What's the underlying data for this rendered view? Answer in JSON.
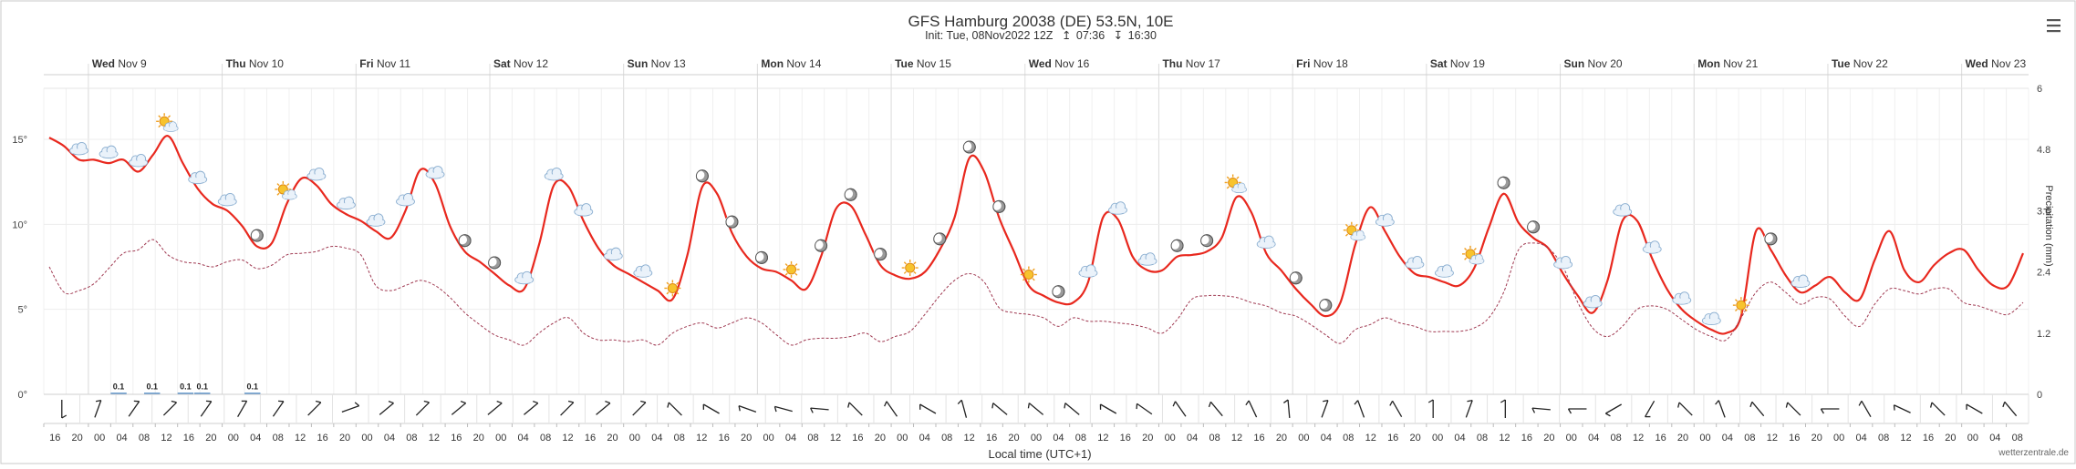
{
  "header": {
    "title": "GFS Hamburg 20038 (DE) 53.5N, 10E",
    "init": "Init: Tue, 08Nov2022 12Z",
    "sunrise": "07:36",
    "sunset": "16:30"
  },
  "menu_icon": "hamburger-menu-icon",
  "credit": "wetterzentrale.de",
  "chart_data": {
    "type": "line",
    "xlabel": "Local time (UTC+1)",
    "ylabel_right": "Precipitation (mm)",
    "ylim_left": [
      0,
      18
    ],
    "ylim_right": [
      0,
      6
    ],
    "y_ticks_left": [
      "0°",
      "5°",
      "10°",
      "15°"
    ],
    "y_ticks_right": [
      "0",
      "1.2",
      "2.4",
      "3.6",
      "4.8",
      "6"
    ],
    "days": [
      {
        "wd": "Wed",
        "rest": " Nov 9"
      },
      {
        "wd": "Thu",
        "rest": " Nov 10"
      },
      {
        "wd": "Fri",
        "rest": " Nov 11"
      },
      {
        "wd": "Sat",
        "rest": " Nov 12"
      },
      {
        "wd": "Sun",
        "rest": " Nov 13"
      },
      {
        "wd": "Mon",
        "rest": " Nov 14"
      },
      {
        "wd": "Tue",
        "rest": " Nov 15"
      },
      {
        "wd": "Wed",
        "rest": " Nov 16"
      },
      {
        "wd": "Thu",
        "rest": " Nov 17"
      },
      {
        "wd": "Fri",
        "rest": " Nov 18"
      },
      {
        "wd": "Sat",
        "rest": " Nov 19"
      },
      {
        "wd": "Sun",
        "rest": " Nov 20"
      },
      {
        "wd": "Mon",
        "rest": " Nov 21"
      },
      {
        "wd": "Tue",
        "rest": " Nov 22"
      },
      {
        "wd": "Wed",
        "rest": " Nov 23"
      }
    ],
    "hour_labels": [
      "16",
      "20",
      "00",
      "04",
      "08",
      "12",
      "16",
      "20",
      "00",
      "04",
      "08",
      "12",
      "16",
      "20",
      "00",
      "04",
      "08",
      "12",
      "16",
      "20",
      "00",
      "04",
      "08",
      "12",
      "16",
      "20",
      "00",
      "04",
      "08",
      "12",
      "16",
      "20",
      "00",
      "04",
      "08",
      "12",
      "16",
      "20",
      "00",
      "04",
      "08",
      "12",
      "16",
      "20",
      "00",
      "04",
      "08",
      "12",
      "16",
      "20",
      "00",
      "04",
      "08",
      "12",
      "16",
      "20",
      "00",
      "04",
      "08",
      "12",
      "16",
      "20",
      "00",
      "04",
      "08",
      "12",
      "16",
      "20",
      "00",
      "04",
      "08",
      "12",
      "16",
      "20",
      "00",
      "04",
      "08",
      "12",
      "16",
      "20",
      "00",
      "04",
      "08",
      "12",
      "16",
      "20",
      "00",
      "04",
      "08"
    ],
    "series": [
      {
        "name": "Temperature (°C)",
        "color": "#e8281e",
        "values": [
          15.1,
          14.6,
          13.8,
          13.8,
          13.6,
          13.8,
          13.1,
          14.1,
          15.2,
          13.6,
          12.1,
          11.2,
          10.8,
          9.9,
          8.7,
          8.9,
          11.2,
          12.7,
          12.3,
          11.2,
          10.6,
          10.2,
          9.6,
          9.2,
          10.8,
          13.2,
          12.4,
          9.9,
          8.4,
          7.8,
          7.1,
          6.4,
          6.2,
          8.8,
          12.3,
          12.2,
          10.2,
          8.6,
          7.6,
          7.1,
          6.6,
          6.1,
          5.6,
          8.2,
          12.2,
          11.8,
          9.5,
          8.1,
          7.4,
          7.2,
          6.7,
          6.2,
          8.1,
          10.9,
          11.1,
          9.4,
          7.6,
          7.0,
          6.8,
          7.2,
          8.5,
          10.4,
          13.9,
          13.1,
          10.4,
          8.4,
          6.4,
          5.8,
          5.4,
          5.4,
          6.6,
          10.4,
          10.3,
          8.1,
          7.3,
          7.3,
          8.1,
          8.2,
          8.4,
          9.2,
          11.6,
          10.7,
          8.3,
          7.3,
          6.2,
          5.3,
          4.6,
          5.4,
          8.8,
          11.0,
          9.6,
          8.1,
          7.1,
          6.9,
          6.6,
          6.4,
          7.4,
          9.8,
          11.8,
          10.1,
          9.2,
          8.6,
          7.1,
          5.8,
          4.8,
          6.7,
          10.2,
          10.2,
          8.0,
          6.2,
          5.0,
          4.3,
          3.8,
          3.6,
          4.6,
          9.6,
          8.5,
          7.0,
          6.0,
          6.4,
          6.9,
          6.0,
          5.6,
          7.9,
          9.6,
          7.3,
          6.6,
          7.6,
          8.3,
          8.5,
          7.3,
          6.4,
          6.4,
          8.3
        ]
      },
      {
        "name": "Dew point (°C)",
        "color": "#a03a52",
        "values": [
          7.5,
          6.0,
          6.1,
          6.5,
          7.4,
          8.3,
          8.5,
          9.1,
          8.2,
          7.8,
          7.7,
          7.5,
          7.8,
          7.9,
          7.4,
          7.6,
          8.2,
          8.3,
          8.4,
          8.7,
          8.6,
          8.2,
          6.4,
          6.1,
          6.4,
          6.7,
          6.4,
          5.7,
          4.8,
          4.1,
          3.5,
          3.2,
          2.9,
          3.6,
          4.2,
          4.5,
          3.6,
          3.2,
          3.2,
          3.1,
          3.2,
          2.9,
          3.6,
          4.0,
          4.2,
          3.9,
          4.2,
          4.5,
          4.2,
          3.5,
          2.9,
          3.2,
          3.3,
          3.3,
          3.4,
          3.6,
          3.1,
          3.4,
          3.7,
          4.7,
          5.8,
          6.7,
          7.1,
          6.6,
          5.1,
          4.8,
          4.7,
          4.5,
          4.0,
          4.5,
          4.3,
          4.3,
          4.2,
          4.1,
          3.9,
          3.6,
          4.4,
          5.6,
          5.8,
          5.8,
          5.7,
          5.4,
          5.2,
          4.8,
          4.6,
          4.1,
          3.5,
          3.0,
          3.8,
          4.1,
          4.5,
          4.2,
          4.0,
          3.7,
          3.7,
          3.7,
          3.9,
          4.5,
          6.0,
          8.5,
          8.9,
          8.6,
          7.5,
          5.4,
          3.9,
          3.4,
          4.0,
          5.0,
          5.2,
          5.0,
          4.4,
          3.8,
          3.4,
          3.2,
          4.5,
          6.0,
          6.6,
          6.0,
          5.3,
          5.7,
          5.6,
          4.6,
          4.0,
          5.3,
          6.2,
          6.1,
          5.9,
          6.2,
          6.2,
          5.4,
          5.2,
          4.9,
          4.7,
          5.4
        ]
      }
    ],
    "precip_bars": [
      {
        "hour_index": 4,
        "value": 0.1
      },
      {
        "hour_index": 6,
        "value": 0.1
      },
      {
        "hour_index": 8,
        "value": 0.1
      },
      {
        "hour_index": 9,
        "value": 0.1
      },
      {
        "hour_index": 12,
        "value": 0.1
      }
    ],
    "precip_step_hours": 3,
    "weather_icons": [
      {
        "hour_index": 2,
        "icon": "cloud"
      },
      {
        "hour_index": 4,
        "icon": "cloud"
      },
      {
        "hour_index": 6,
        "icon": "cloud"
      },
      {
        "hour_index": 8,
        "icon": "sun-cloud"
      },
      {
        "hour_index": 10,
        "icon": "cloud"
      },
      {
        "hour_index": 12,
        "icon": "cloud"
      },
      {
        "hour_index": 14,
        "icon": "moon"
      },
      {
        "hour_index": 16,
        "icon": "sun-cloud"
      },
      {
        "hour_index": 18,
        "icon": "cloud"
      },
      {
        "hour_index": 20,
        "icon": "cloud"
      },
      {
        "hour_index": 22,
        "icon": "cloud"
      },
      {
        "hour_index": 24,
        "icon": "cloud"
      },
      {
        "hour_index": 26,
        "icon": "cloud"
      },
      {
        "hour_index": 28,
        "icon": "moon"
      },
      {
        "hour_index": 30,
        "icon": "moon"
      },
      {
        "hour_index": 32,
        "icon": "cloud"
      },
      {
        "hour_index": 34,
        "icon": "cloud"
      },
      {
        "hour_index": 36,
        "icon": "cloud"
      },
      {
        "hour_index": 38,
        "icon": "cloud"
      },
      {
        "hour_index": 40,
        "icon": "cloud"
      },
      {
        "hour_index": 42,
        "icon": "sun"
      },
      {
        "hour_index": 44,
        "icon": "moon"
      },
      {
        "hour_index": 46,
        "icon": "moon"
      },
      {
        "hour_index": 48,
        "icon": "moon"
      },
      {
        "hour_index": 50,
        "icon": "sun"
      },
      {
        "hour_index": 52,
        "icon": "moon"
      },
      {
        "hour_index": 54,
        "icon": "moon"
      },
      {
        "hour_index": 56,
        "icon": "moon"
      },
      {
        "hour_index": 58,
        "icon": "sun"
      },
      {
        "hour_index": 60,
        "icon": "moon"
      },
      {
        "hour_index": 62,
        "icon": "moon"
      },
      {
        "hour_index": 64,
        "icon": "moon"
      },
      {
        "hour_index": 66,
        "icon": "sun"
      },
      {
        "hour_index": 68,
        "icon": "moon"
      },
      {
        "hour_index": 70,
        "icon": "cloud"
      },
      {
        "hour_index": 72,
        "icon": "cloud"
      },
      {
        "hour_index": 74,
        "icon": "cloud"
      },
      {
        "hour_index": 76,
        "icon": "moon"
      },
      {
        "hour_index": 78,
        "icon": "moon"
      },
      {
        "hour_index": 80,
        "icon": "sun-cloud"
      },
      {
        "hour_index": 82,
        "icon": "cloud"
      },
      {
        "hour_index": 84,
        "icon": "moon"
      },
      {
        "hour_index": 86,
        "icon": "moon"
      },
      {
        "hour_index": 88,
        "icon": "sun-cloud"
      },
      {
        "hour_index": 90,
        "icon": "cloud"
      },
      {
        "hour_index": 92,
        "icon": "cloud"
      },
      {
        "hour_index": 94,
        "icon": "cloud"
      },
      {
        "hour_index": 96,
        "icon": "sun-cloud"
      },
      {
        "hour_index": 98,
        "icon": "moon"
      },
      {
        "hour_index": 100,
        "icon": "moon"
      },
      {
        "hour_index": 102,
        "icon": "cloud"
      },
      {
        "hour_index": 104,
        "icon": "cloud"
      },
      {
        "hour_index": 106,
        "icon": "cloud"
      },
      {
        "hour_index": 108,
        "icon": "cloud"
      },
      {
        "hour_index": 110,
        "icon": "cloud"
      },
      {
        "hour_index": 112,
        "icon": "cloud"
      },
      {
        "hour_index": 114,
        "icon": "sun"
      },
      {
        "hour_index": 116,
        "icon": "moon"
      },
      {
        "hour_index": 118,
        "icon": "cloud"
      }
    ],
    "wind_direction_deg": [
      0,
      200,
      215,
      225,
      215,
      210,
      215,
      225,
      250,
      230,
      225,
      230,
      230,
      230,
      225,
      230,
      225,
      135,
      120,
      110,
      105,
      95,
      135,
      145,
      120,
      165,
      130,
      130,
      130,
      120,
      125,
      145,
      140,
      155,
      175,
      200,
      160,
      150,
      180,
      200,
      180,
      95,
      90,
      60,
      30,
      135,
      160,
      140,
      135,
      90,
      150,
      115,
      135,
      120,
      140
    ]
  }
}
